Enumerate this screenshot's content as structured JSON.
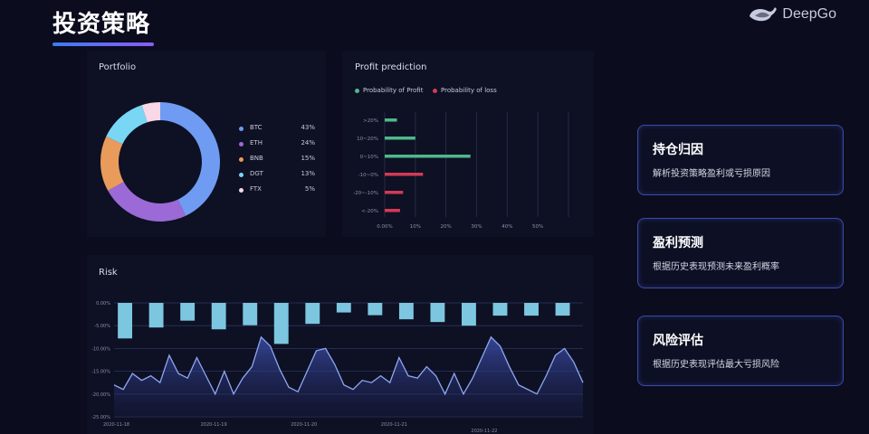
{
  "page": {
    "title": "投资策略",
    "brand": "DeepGo"
  },
  "portfolio": {
    "title": "Portfolio",
    "items": [
      {
        "name": "BTC",
        "pct_label": "43%",
        "value": 43,
        "color": "#6f9cf2"
      },
      {
        "name": "ETH",
        "pct_label": "24%",
        "value": 24,
        "color": "#9b6ad6"
      },
      {
        "name": "BNB",
        "pct_label": "15%",
        "value": 15,
        "color": "#e99b5c"
      },
      {
        "name": "DGT",
        "pct_label": "13%",
        "value": 13,
        "color": "#79d6f5"
      },
      {
        "name": "FTX",
        "pct_label": "5%",
        "value": 5,
        "color": "#f8d7e6"
      }
    ]
  },
  "profit": {
    "title": "Profit prediction",
    "legend_profit": "Probability of Profit",
    "legend_loss": "Probability of loss",
    "profit_color": "#4fb98a",
    "loss_color": "#d23a55"
  },
  "chart_data": [
    {
      "type": "pie",
      "title": "Portfolio",
      "categories": [
        "BTC",
        "ETH",
        "BNB",
        "DGT",
        "FTX"
      ],
      "values": [
        43,
        24,
        15,
        13,
        5
      ]
    },
    {
      "type": "bar",
      "title": "Profit prediction",
      "categories": [
        ">20%",
        "10~20%",
        "0~10%",
        "-10~0%",
        "-20~-10%",
        "<-20%"
      ],
      "x_ticks": [
        "0.00%",
        "10%",
        "20%",
        "30%",
        "40%",
        "50%"
      ],
      "xlim": [
        0,
        50
      ],
      "series": [
        {
          "name": "Probability of Profit",
          "values": [
            4,
            10,
            28,
            0,
            0,
            0
          ]
        },
        {
          "name": "Probability of loss",
          "values": [
            0,
            0,
            0,
            12.5,
            6,
            5
          ]
        }
      ]
    },
    {
      "type": "area",
      "title": "Risk",
      "y_ticks": [
        "0.00%",
        "-5.00%",
        "-10.00%",
        "-15.00%",
        "-20.00%",
        "-25.00%"
      ],
      "ylim": [
        -25,
        0
      ],
      "x_ticks": [
        {
          "label": "2020-11-18",
          "row": 0,
          "pos": 0.0
        },
        {
          "label": "2020-11-19",
          "row": 0,
          "pos": 0.2
        },
        {
          "label": "2020-11-20",
          "row": 0,
          "pos": 0.4
        },
        {
          "label": "2020-11-21",
          "row": 0,
          "pos": 0.6
        },
        {
          "label": "2020-11-22",
          "row": 1,
          "pos": 0.8
        }
      ],
      "bars": [
        -7.8,
        -5.4,
        -3.9,
        -5.8,
        -4.9,
        -9,
        -4.6,
        -2.1,
        -2.7,
        -3.6,
        -4.2,
        -5,
        -2.8,
        -2.8,
        -2.8
      ],
      "line": [
        -18,
        -19,
        -15.5,
        -17,
        -16,
        -17.5,
        -11.5,
        -15.5,
        -16.5,
        -12,
        -16,
        -20,
        -15,
        -20,
        -16.5,
        -14,
        -7.5,
        -9.5,
        -14.5,
        -18.5,
        -19.5,
        -15,
        -10.5,
        -10,
        -13.5,
        -18,
        -19,
        -17,
        -17.5,
        -16,
        -17.5,
        -12,
        -16,
        -16.5,
        -14,
        -16,
        -20,
        -15.5,
        -20,
        -16.5,
        -12,
        -7.5,
        -9.5,
        -14,
        -18,
        -19,
        -20,
        -16,
        -11.5,
        -10,
        -13,
        -17.5
      ]
    }
  ],
  "risk": {
    "title": "Risk",
    "bar_color": "#7cc6df",
    "line_color": "#8ea7f2"
  },
  "cards": [
    {
      "title": "持仓归因",
      "desc": "解析投资策略盈利或亏损原因"
    },
    {
      "title": "盈利预测",
      "desc": "根据历史表现预测未来盈利概率"
    },
    {
      "title": "风险评估",
      "desc": "根据历史表现评估最大亏损风险"
    }
  ]
}
